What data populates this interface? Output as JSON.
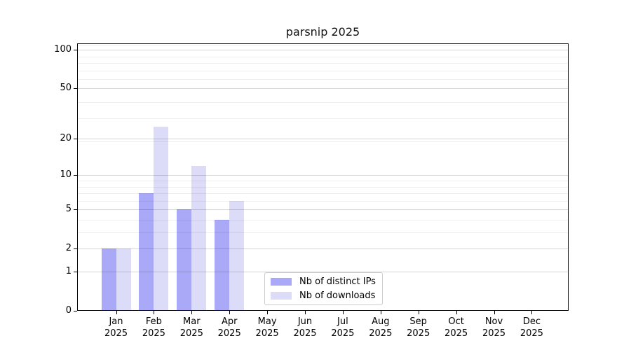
{
  "chart_data": {
    "type": "bar",
    "title": "parsnip 2025",
    "x_months": [
      "Jan",
      "Feb",
      "Mar",
      "Apr",
      "May",
      "Jun",
      "Jul",
      "Aug",
      "Sep",
      "Oct",
      "Nov",
      "Dec"
    ],
    "x_year": "2025",
    "y_scale": "log10(1+x)",
    "ylim": [
      0,
      113
    ],
    "y_tick_values": [
      0,
      1,
      2,
      5,
      10,
      20,
      50,
      100
    ],
    "y_minor_gridline_values": [
      3,
      4,
      6,
      7,
      8,
      9,
      19,
      29,
      39,
      59,
      69,
      79,
      89,
      109
    ],
    "grid": "horizontal",
    "legend_position": "inside lower center",
    "series": [
      {
        "name": "Nb of distinct IPs",
        "color_hex": "#a9a9f8",
        "values": [
          2,
          7,
          5,
          4,
          null,
          null,
          null,
          null,
          null,
          null,
          null,
          null
        ]
      },
      {
        "name": "Nb of downloads",
        "color_hex": "#dcdcf8",
        "values": [
          2,
          25,
          12,
          6,
          null,
          null,
          null,
          null,
          null,
          null,
          null,
          null
        ]
      }
    ]
  }
}
